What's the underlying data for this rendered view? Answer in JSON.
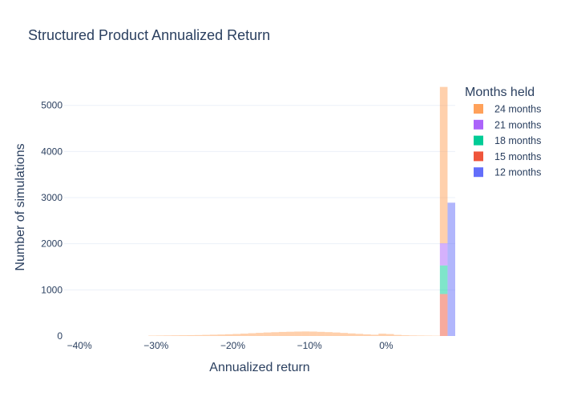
{
  "chart_data": {
    "type": "bar",
    "title": "Structured Product Annualized Return",
    "xlabel": "Annualized return",
    "ylabel": "Number of simulations",
    "xlim": [
      -0.42,
      0.09
    ],
    "ylim": [
      0,
      5550
    ],
    "x_tick_values": [
      -0.4,
      -0.3,
      -0.2,
      -0.1,
      0
    ],
    "x_tick_labels": [
      "−40%",
      "−30%",
      "−20%",
      "−10%",
      "0%"
    ],
    "y_tick_values": [
      0,
      1000,
      2000,
      3000,
      4000,
      5000
    ],
    "y_tick_labels": [
      "0",
      "1000",
      "2000",
      "3000",
      "4000",
      "5000"
    ],
    "grid": "horizontal",
    "barmode": "stack",
    "bin_width": 0.01,
    "legend_title": "Months held",
    "legend_position": "top-right",
    "series": [
      {
        "name": "12 months",
        "color": "#636efa",
        "bin_starts": [
          0.08
        ],
        "values": [
          2890
        ]
      },
      {
        "name": "15 months",
        "color": "#ef553b",
        "bin_starts": [
          0.07
        ],
        "values": [
          910
        ]
      },
      {
        "name": "18 months",
        "color": "#00cc96",
        "bin_starts": [
          0.07
        ],
        "values": [
          620
        ]
      },
      {
        "name": "21 months",
        "color": "#ab63fa",
        "bin_starts": [
          0.07
        ],
        "values": [
          480
        ]
      },
      {
        "name": "24 months",
        "color": "#ffa15a",
        "bin_starts": [
          -0.31,
          -0.3,
          -0.29,
          -0.28,
          -0.27,
          -0.26,
          -0.25,
          -0.24,
          -0.23,
          -0.22,
          -0.21,
          -0.2,
          -0.19,
          -0.18,
          -0.17,
          -0.16,
          -0.15,
          -0.14,
          -0.13,
          -0.12,
          -0.11,
          -0.1,
          -0.09,
          -0.08,
          -0.07,
          -0.06,
          -0.05,
          -0.04,
          -0.03,
          -0.02,
          -0.01,
          0.0,
          0.01,
          0.02,
          0.03,
          0.04,
          0.05,
          0.06,
          0.07
        ],
        "values": [
          8,
          10,
          12,
          14,
          16,
          18,
          20,
          24,
          28,
          32,
          38,
          44,
          52,
          60,
          68,
          76,
          82,
          88,
          92,
          96,
          98,
          96,
          90,
          84,
          76,
          66,
          56,
          46,
          36,
          28,
          50,
          42,
          24,
          16,
          12,
          10,
          8,
          6,
          3390
        ]
      }
    ]
  }
}
